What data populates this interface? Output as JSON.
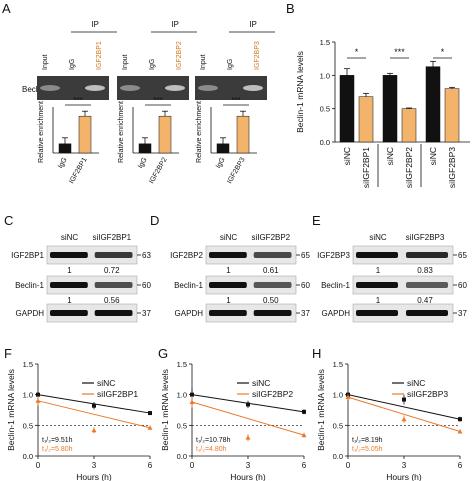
{
  "colors": {
    "black_bar": "#111111",
    "orange": "#f3b36b",
    "orange_line": "#ea7a2a",
    "gel_bg": "#3b3b3b",
    "blot_bg": "#e7e7e7",
    "band": "#111111"
  },
  "panelA": {
    "label": "A",
    "row_label": "Beclin-1",
    "ylabel": "Relative enrichment",
    "sig": "***",
    "groups": [
      {
        "ip_label": "IP",
        "lanes": [
          "Input",
          "IgG",
          "IGF2BP1"
        ],
        "xticks": [
          "IgG",
          "IGF2BP1"
        ]
      },
      {
        "ip_label": "IP",
        "lanes": [
          "Input",
          "IgG",
          "IGF2BP2"
        ],
        "xticks": [
          "IgG",
          "IGF2BP2"
        ]
      },
      {
        "ip_label": "IP",
        "lanes": [
          "Input",
          "IgG",
          "IGF2BP3"
        ],
        "xticks": [
          "IgG",
          "IGF2BP3"
        ]
      }
    ]
  },
  "panelB": {
    "label": "B",
    "ylabel": "Beclin-1  mRNA levels",
    "yticks": [
      "0.0",
      "0.5",
      "1.0",
      "1.5"
    ],
    "xticks": [
      "siNC",
      "siIGF2BP1",
      "siNC",
      "siIGF2BP2",
      "siNC",
      "siIGF2BP3"
    ],
    "sigs": [
      "*",
      "***",
      "*"
    ]
  },
  "blots": [
    {
      "label": "C",
      "col1": "siNC",
      "col2": "siIGF2BP1",
      "rows": [
        {
          "name": "IGF2BP1",
          "mw": "63",
          "v1": "1",
          "v2": "0.72"
        },
        {
          "name": "Beclin-1",
          "mw": "60",
          "v1": "1",
          "v2": "0.56"
        },
        {
          "name": "GAPDH",
          "mw": "37"
        }
      ]
    },
    {
      "label": "D",
      "col1": "siNC",
      "col2": "siIGF2BP2",
      "rows": [
        {
          "name": "IGF2BP2",
          "mw": "65",
          "v1": "1",
          "v2": "0.61"
        },
        {
          "name": "Beclin-1",
          "mw": "60",
          "v1": "1",
          "v2": "0.50"
        },
        {
          "name": "GAPDH",
          "mw": "37"
        }
      ]
    },
    {
      "label": "E",
      "col1": "siNC",
      "col2": "siIGF2BP3",
      "rows": [
        {
          "name": "IGF2BP3",
          "mw": "65",
          "v1": "1",
          "v2": "0.83"
        },
        {
          "name": "Beclin-1",
          "mw": "60",
          "v1": "1",
          "v2": "0.47"
        },
        {
          "name": "GAPDH",
          "mw": "37"
        }
      ]
    }
  ],
  "decay": [
    {
      "label": "F",
      "series": [
        "siNC",
        "siIGF2BP1"
      ],
      "t_nc": "t₁/₂=9.51h",
      "t_kd": "t₁/₂=5.80h"
    },
    {
      "label": "G",
      "series": [
        "siNC",
        "siIGF2BP2"
      ],
      "t_nc": "t₁/₂=10.78h",
      "t_kd": "t₁/₂=4.80h"
    },
    {
      "label": "H",
      "series": [
        "siNC",
        "siIGF2BP3"
      ],
      "t_nc": "t₁/₂=8.19h",
      "t_kd": "t₁/₂=5.05h"
    }
  ],
  "decay_common": {
    "ylabel": "Beclin-1 mRNA levels",
    "xlabel": "Hours (h)",
    "yticks": [
      "0.0",
      "0.5",
      "1.0",
      "1.5"
    ],
    "xticks": [
      "0",
      "3",
      "6"
    ]
  },
  "chart_data": [
    {
      "type": "bar",
      "panel": "A",
      "ylabel": "Relative enrichment",
      "charts": [
        {
          "categories": [
            "IgG",
            "IGF2BP1"
          ],
          "values": [
            1.0,
            4.0
          ],
          "ylim": [
            0,
            5
          ]
        },
        {
          "categories": [
            "IgG",
            "IGF2BP2"
          ],
          "values": [
            1.0,
            4.0
          ],
          "ylim": [
            0,
            5
          ]
        },
        {
          "categories": [
            "IgG",
            "IGF2BP3"
          ],
          "values": [
            1.0,
            4.0
          ],
          "ylim": [
            0,
            5
          ]
        }
      ]
    },
    {
      "type": "bar",
      "panel": "B",
      "ylabel": "Beclin-1  mRNA levels",
      "categories": [
        "siNC",
        "siIGF2BP1",
        "siNC",
        "siIGF2BP2",
        "siNC",
        "siIGF2BP3"
      ],
      "values": [
        1.0,
        0.68,
        1.0,
        0.5,
        1.13,
        0.8
      ],
      "errors": [
        0.1,
        0.05,
        0.03,
        0.01,
        0.08,
        0.02
      ],
      "ylim": [
        0,
        1.5
      ]
    },
    {
      "type": "line",
      "panel": "F",
      "xlabel": "Hours (h)",
      "ylabel": "Beclin-1 mRNA levels",
      "xlim": [
        0,
        6
      ],
      "ylim": [
        0,
        1.5
      ],
      "series": [
        {
          "name": "siNC",
          "x": [
            0,
            3,
            6
          ],
          "y": [
            1.0,
            0.82,
            0.7
          ],
          "err": [
            0.05,
            0.06,
            0.03
          ]
        },
        {
          "name": "siIGF2BP1",
          "x": [
            0,
            3,
            6
          ],
          "y": [
            0.9,
            0.42,
            0.46
          ],
          "err": [
            0.08,
            0.05,
            0.03
          ]
        }
      ]
    },
    {
      "type": "line",
      "panel": "G",
      "xlabel": "Hours (h)",
      "ylabel": "Beclin-1 mRNA levels",
      "xlim": [
        0,
        6
      ],
      "ylim": [
        0,
        1.5
      ],
      "series": [
        {
          "name": "siNC",
          "x": [
            0,
            3,
            6
          ],
          "y": [
            1.0,
            0.84,
            0.72
          ],
          "err": [
            0.1,
            0.06,
            0.04
          ]
        },
        {
          "name": "siIGF2BP2",
          "x": [
            0,
            3,
            6
          ],
          "y": [
            0.88,
            0.3,
            0.34
          ],
          "err": [
            0.1,
            0.06,
            0.04
          ]
        }
      ]
    },
    {
      "type": "line",
      "panel": "H",
      "xlabel": "Hours (h)",
      "ylabel": "Beclin-1 mRNA levels",
      "xlim": [
        0,
        6
      ],
      "ylim": [
        0,
        1.5
      ],
      "series": [
        {
          "name": "siNC",
          "x": [
            0,
            3,
            6
          ],
          "y": [
            1.0,
            0.92,
            0.6
          ],
          "err": [
            0.05,
            0.08,
            0.04
          ]
        },
        {
          "name": "siIGF2BP3",
          "x": [
            0,
            3,
            6
          ],
          "y": [
            0.96,
            0.6,
            0.4
          ],
          "err": [
            0.05,
            0.06,
            0.03
          ]
        }
      ]
    }
  ]
}
